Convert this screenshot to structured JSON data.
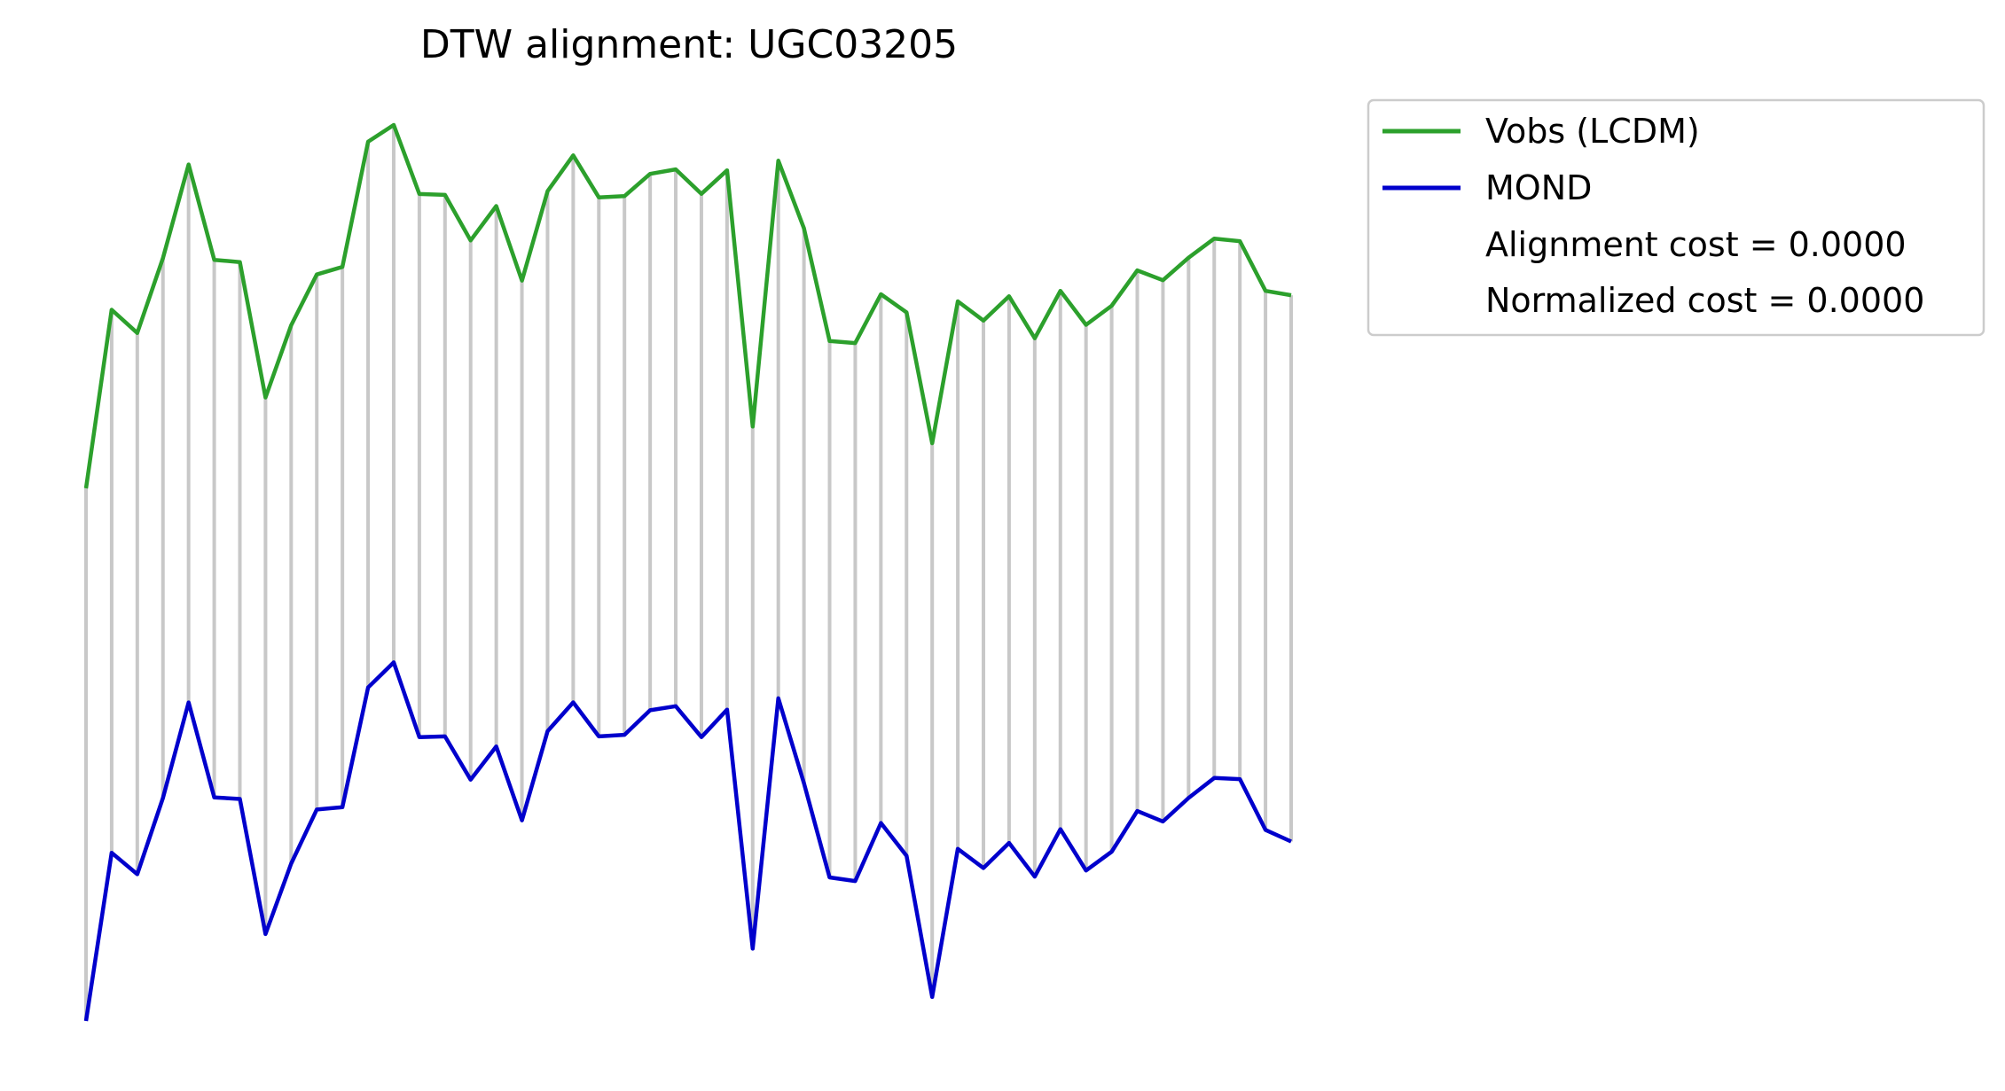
{
  "chart_data": {
    "type": "line",
    "title": "DTW alignment: UGC03205",
    "xlabel": "",
    "ylabel": "",
    "axes_visible": false,
    "grid": false,
    "legend_position": "upper right, outside plot",
    "x": [
      0,
      1,
      2,
      3,
      4,
      5,
      6,
      7,
      8,
      9,
      10,
      11,
      12,
      13,
      14,
      15,
      16,
      17,
      18,
      19,
      20,
      21,
      22,
      23,
      24,
      25,
      26,
      27,
      28,
      29,
      30,
      31,
      32,
      33,
      34,
      35,
      36,
      37,
      38,
      39,
      40,
      41,
      42,
      43,
      44,
      45,
      46,
      47
    ],
    "series": [
      {
        "name": "Vobs (LCDM)",
        "color": "#2ca02c",
        "values": [
          37.88,
          50.58,
          48.93,
          54.24,
          60.91,
          54.13,
          53.97,
          44.34,
          49.47,
          53.09,
          53.62,
          62.53,
          63.72,
          58.81,
          58.75,
          55.51,
          57.95,
          52.65,
          59.01,
          61.56,
          58.57,
          58.66,
          60.24,
          60.56,
          58.82,
          60.49,
          42.27,
          61.18,
          56.37,
          48.36,
          48.21,
          51.68,
          50.39,
          41.09,
          51.18,
          49.81,
          51.54,
          48.55,
          51.92,
          49.51,
          50.86,
          53.38,
          52.68,
          54.28,
          55.64,
          55.46,
          51.92,
          51.61
        ]
      },
      {
        "name": "MOND",
        "color": "#0000cc",
        "values": [
          0.0,
          11.96,
          10.44,
          15.85,
          22.65,
          15.9,
          15.79,
          6.18,
          11.19,
          15.04,
          15.2,
          23.72,
          25.5,
          20.19,
          20.24,
          17.16,
          19.52,
          14.27,
          20.61,
          22.66,
          20.24,
          20.35,
          22.1,
          22.39,
          20.19,
          22.14,
          5.14,
          22.95,
          16.91,
          10.21,
          9.95,
          14.08,
          11.75,
          1.71,
          12.24,
          10.88,
          12.66,
          10.27,
          13.64,
          10.7,
          12.04,
          14.93,
          14.19,
          15.86,
          17.28,
          17.2,
          13.59,
          12.76
        ]
      }
    ],
    "alignment_links": "one-to-one (index i to index i)",
    "alignment_color": "#c8c8c8",
    "legend": {
      "entries": [
        "Vobs (LCDM)",
        "MOND"
      ],
      "notes": [
        "Alignment cost = 0.0000",
        "Normalized cost = 0.0000"
      ]
    }
  }
}
